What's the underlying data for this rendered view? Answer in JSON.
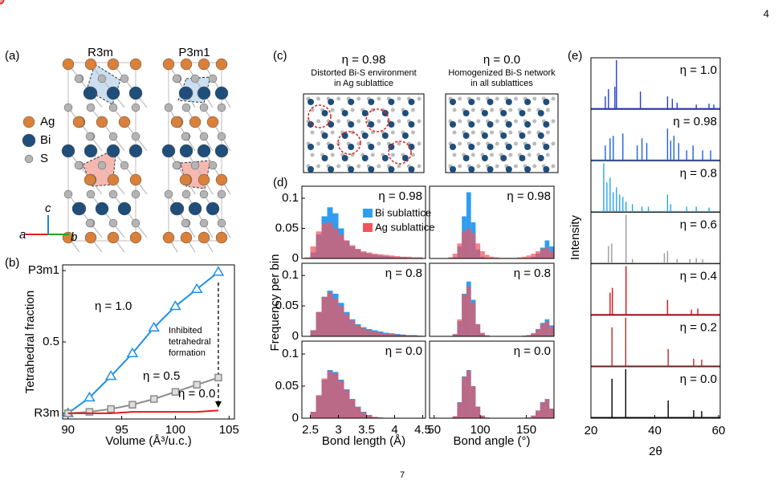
{
  "page": {
    "page_number": "4",
    "footer_number": "7"
  },
  "panel_a": {
    "label": "(a)",
    "structures": [
      "R3m",
      "P3m1"
    ],
    "legend": [
      "Ag",
      "Bi",
      "S"
    ],
    "axes": [
      "a",
      "b",
      "c"
    ]
  },
  "panel_c": {
    "label": "(c)",
    "images": [
      {
        "title": "η = 0.98",
        "caption": [
          "Distorted Bi-S environment",
          "in Ag sublattice"
        ]
      },
      {
        "title": "η = 0.0",
        "caption": [
          "Homogenized Bi-S network",
          "in all sublattices"
        ]
      }
    ]
  },
  "chart_data": [
    {
      "type": "line",
      "label": "(b)",
      "xlabel": "Volume (Å³/u.c.)",
      "ylabel": "Tetrahedral fraction",
      "annotation": [
        "Inhibited",
        "tetrahedral",
        "formation"
      ],
      "x": [
        90,
        92,
        94,
        96,
        98,
        100,
        102,
        104
      ],
      "series": [
        {
          "name": "η = 1.0",
          "color": "#1e90e8",
          "marker": "triangle",
          "values": [
            0,
            0.11,
            0.26,
            0.42,
            0.6,
            0.75,
            0.87,
            0.99
          ]
        },
        {
          "name": "η = 0.5",
          "color": "#8c8c8c",
          "marker": "square",
          "values": [
            0,
            0.01,
            0.03,
            0.06,
            0.1,
            0.15,
            0.2,
            0.25
          ]
        },
        {
          "name": "η = 0.0",
          "color": "#e8191e",
          "marker": "circle",
          "values": [
            0,
            0,
            0,
            0.01,
            0.01,
            0.01,
            0.01,
            0.02
          ]
        }
      ],
      "xlim": [
        89.5,
        105.5
      ],
      "ylim": [
        -0.04,
        1.04
      ],
      "xticks": [
        90,
        95,
        100,
        105
      ],
      "yticks": [
        {
          "value": 0,
          "label": "R3m"
        },
        0.5,
        {
          "value": 1,
          "label": "P3m1"
        }
      ]
    },
    {
      "type": "histogram",
      "label": "(d)",
      "ylabel": "Frequency per bin",
      "annotation": "η = 0.98",
      "bins": [
        2.4,
        2.5,
        2.6,
        2.7,
        2.8,
        2.9,
        3.0,
        3.1,
        3.2,
        3.3,
        3.4,
        3.5,
        3.6,
        3.7,
        3.8,
        3.9,
        4.0,
        4.1,
        4.2,
        4.3,
        4.4,
        4.5
      ],
      "series": [
        {
          "name": "Bi sublattice",
          "color": "#2f9ef0",
          "values": [
            0,
            0.01,
            0.04,
            0.07,
            0.085,
            0.075,
            0.05,
            0.03,
            0.02,
            0.015,
            0.01,
            0.008,
            0.006,
            0.005,
            0.004,
            0.003,
            0.002,
            0.002,
            0.001,
            0.001,
            0.001
          ]
        },
        {
          "name": "Ag sublattice",
          "color": "#f0555e",
          "values": [
            0.002,
            0.02,
            0.045,
            0.058,
            0.06,
            0.05,
            0.04,
            0.03,
            0.022,
            0.016,
            0.012,
            0.01,
            0.008,
            0.007,
            0.006,
            0.005,
            0.004,
            0.003,
            0.003,
            0.002,
            0.002
          ]
        }
      ],
      "xlim": [
        2.35,
        4.55
      ],
      "ylim": [
        0,
        0.12
      ],
      "yticks": [
        0,
        {
          "value": 0.05,
          "label": "0.05"
        },
        {
          "value": 0.1,
          "label": "0.1"
        }
      ]
    },
    {
      "type": "histogram",
      "annotation": "η = 0.98",
      "bins": [
        60,
        65,
        70,
        75,
        80,
        85,
        90,
        95,
        100,
        105,
        110,
        115,
        120,
        125,
        130,
        135,
        140,
        145,
        150,
        155,
        160,
        165,
        170,
        175,
        180
      ],
      "series": [
        {
          "color": "#2f9ef0",
          "values": [
            0,
            0,
            0.002,
            0.02,
            0.07,
            0.11,
            0.06,
            0.015,
            0.003,
            0.001,
            0,
            0,
            0,
            0,
            0,
            0,
            0,
            0,
            0.001,
            0.003,
            0.008,
            0.018,
            0.03,
            0.02
          ]
        },
        {
          "color": "#f0555e",
          "values": [
            0,
            0.002,
            0.008,
            0.025,
            0.045,
            0.05,
            0.042,
            0.025,
            0.012,
            0.006,
            0.003,
            0.002,
            0.001,
            0.001,
            0.001,
            0.001,
            0.002,
            0.003,
            0.005,
            0.008,
            0.012,
            0.016,
            0.018,
            0.012
          ]
        }
      ],
      "xlim": [
        45,
        180
      ],
      "ylim": [
        0,
        0.12
      ]
    },
    {
      "type": "histogram",
      "annotation": "η = 0.8",
      "bins": [
        2.4,
        2.5,
        2.6,
        2.7,
        2.8,
        2.9,
        3.0,
        3.1,
        3.2,
        3.3,
        3.4,
        3.5,
        3.6,
        3.7,
        3.8,
        3.9,
        4.0,
        4.1,
        4.2,
        4.3,
        4.4,
        4.5
      ],
      "series": [
        {
          "color": "#2f9ef0",
          "values": [
            0,
            0.01,
            0.04,
            0.065,
            0.075,
            0.07,
            0.055,
            0.04,
            0.028,
            0.02,
            0.015,
            0.012,
            0.01,
            0.008,
            0.006,
            0.005,
            0.004,
            0.003,
            0.002,
            0.002,
            0.001
          ]
        },
        {
          "color": "#f0555e",
          "values": [
            0,
            0.01,
            0.04,
            0.065,
            0.072,
            0.062,
            0.05,
            0.036,
            0.026,
            0.018,
            0.013,
            0.01,
            0.008,
            0.006,
            0.005,
            0.004,
            0.003,
            0.002,
            0.002,
            0.001,
            0.001
          ]
        }
      ],
      "xlim": [
        2.35,
        4.55
      ],
      "ylim": [
        0,
        0.12
      ],
      "yticks": [
        0,
        {
          "value": 0.05,
          "label": "0.05"
        },
        {
          "value": 0.1,
          "label": "0.1"
        }
      ]
    },
    {
      "type": "histogram",
      "annotation": "η = 0.8",
      "bins": [
        60,
        65,
        70,
        75,
        80,
        85,
        90,
        95,
        100,
        105,
        110,
        115,
        120,
        125,
        130,
        135,
        140,
        145,
        150,
        155,
        160,
        165,
        170,
        175,
        180
      ],
      "series": [
        {
          "color": "#2f9ef0",
          "values": [
            0,
            0,
            0.003,
            0.025,
            0.07,
            0.09,
            0.06,
            0.02,
            0.005,
            0.001,
            0,
            0,
            0,
            0,
            0,
            0,
            0,
            0.001,
            0.002,
            0.005,
            0.012,
            0.022,
            0.028,
            0.018
          ]
        },
        {
          "color": "#f0555e",
          "values": [
            0,
            0,
            0.004,
            0.028,
            0.068,
            0.082,
            0.055,
            0.02,
            0.006,
            0.002,
            0,
            0,
            0,
            0,
            0,
            0,
            0,
            0.001,
            0.002,
            0.005,
            0.011,
            0.02,
            0.025,
            0.016
          ]
        }
      ],
      "xlim": [
        45,
        180
      ],
      "ylim": [
        0,
        0.12
      ]
    },
    {
      "type": "histogram",
      "annotation": "η = 0.0",
      "xlabel": "Bond length (Å)",
      "bins": [
        2.4,
        2.5,
        2.6,
        2.7,
        2.8,
        2.9,
        3.0,
        3.1,
        3.2,
        3.3,
        3.4,
        3.5,
        3.6,
        3.7,
        3.8,
        3.9,
        4.0,
        4.1,
        4.2,
        4.3,
        4.4,
        4.5
      ],
      "series": [
        {
          "color": "#2f9ef0",
          "values": [
            0,
            0.01,
            0.035,
            0.06,
            0.075,
            0.072,
            0.06,
            0.045,
            0.03,
            0.018,
            0.01,
            0.005,
            0.002,
            0.001,
            0,
            0,
            0,
            0,
            0,
            0,
            0
          ]
        },
        {
          "color": "#f0555e",
          "values": [
            0,
            0.01,
            0.036,
            0.062,
            0.074,
            0.07,
            0.058,
            0.044,
            0.029,
            0.017,
            0.009,
            0.004,
            0.002,
            0.001,
            0,
            0,
            0,
            0,
            0,
            0,
            0
          ]
        }
      ],
      "xlim": [
        2.35,
        4.55
      ],
      "ylim": [
        0,
        0.12
      ],
      "xticks": [
        2.5,
        3,
        3.5,
        4,
        4.5
      ],
      "yticks": [
        0,
        {
          "value": 0.05,
          "label": "0.05"
        },
        {
          "value": 0.1,
          "label": "0.1"
        }
      ]
    },
    {
      "type": "histogram",
      "annotation": "η = 0.0",
      "xlabel": "Bond angle (°)",
      "bins": [
        60,
        65,
        70,
        75,
        80,
        85,
        90,
        95,
        100,
        105,
        110,
        115,
        120,
        125,
        130,
        135,
        140,
        145,
        150,
        155,
        160,
        165,
        170,
        175,
        180
      ],
      "series": [
        {
          "color": "#2f9ef0",
          "values": [
            0,
            0,
            0.003,
            0.025,
            0.065,
            0.075,
            0.05,
            0.018,
            0.004,
            0.001,
            0,
            0,
            0,
            0,
            0,
            0,
            0,
            0,
            0.001,
            0.004,
            0.012,
            0.025,
            0.03,
            0.015
          ]
        },
        {
          "color": "#f0555e",
          "values": [
            0,
            0,
            0.003,
            0.024,
            0.064,
            0.074,
            0.05,
            0.018,
            0.004,
            0.001,
            0,
            0,
            0,
            0,
            0,
            0,
            0,
            0,
            0.001,
            0.004,
            0.012,
            0.024,
            0.029,
            0.015
          ]
        }
      ],
      "xlim": [
        45,
        180
      ],
      "ylim": [
        0,
        0.12
      ],
      "xticks": [
        50,
        100,
        150
      ]
    },
    {
      "type": "stick",
      "label": "(e)",
      "xlabel": "2θ",
      "ylabel": "Intensity",
      "xlim": [
        20,
        60.5
      ],
      "ylim": [
        0,
        1
      ],
      "xticks": [
        20,
        40,
        60
      ],
      "series": [
        {
          "name": "η = 1.0",
          "color": "#1f3fd0",
          "x": [
            24.5,
            25.5,
            27.5,
            28.0,
            35.5,
            44.0,
            45.5,
            47.0,
            53,
            57,
            58.5
          ],
          "values": [
            0.25,
            0.4,
            0.45,
            1.0,
            0.35,
            0.25,
            0.2,
            0.12,
            0.08,
            0.1,
            0.08
          ]
        },
        {
          "name": "η = 0.98",
          "color": "#2060e0",
          "x": [
            24.5,
            26,
            27,
            30,
            34.5,
            36,
            37.5,
            44,
            45,
            46,
            47.5,
            50,
            52,
            55,
            57.5
          ],
          "values": [
            0.3,
            0.45,
            0.5,
            0.55,
            0.3,
            0.45,
            0.35,
            0.65,
            0.4,
            0.5,
            0.35,
            0.2,
            0.3,
            0.2,
            0.2
          ]
        },
        {
          "name": "η = 0.8",
          "color": "#29a3f0",
          "x": [
            24,
            25,
            26,
            27,
            28,
            29,
            30,
            31,
            33,
            36,
            38,
            44,
            45,
            50,
            53,
            57
          ],
          "values": [
            1.0,
            0.6,
            0.7,
            0.4,
            0.5,
            0.35,
            0.3,
            0.2,
            0.15,
            0.1,
            0.1,
            0.35,
            0.15,
            0.1,
            0.1,
            0.08
          ]
        },
        {
          "name": "η = 0.6",
          "color": "#999999",
          "x": [
            25.5,
            26.5,
            31,
            33,
            43,
            44,
            47,
            51,
            53,
            55
          ],
          "values": [
            0.35,
            0.4,
            1.0,
            0.08,
            0.2,
            0.25,
            0.08,
            0.08,
            0.1,
            0.08
          ]
        },
        {
          "name": "η = 0.4",
          "color": "#e01010",
          "x": [
            26,
            26.7,
            31,
            44,
            51.5,
            53.5
          ],
          "values": [
            0.45,
            0.55,
            1.0,
            0.3,
            0.1,
            0.12
          ]
        },
        {
          "name": "η = 0.2",
          "color": "#b03030",
          "x": [
            26.6,
            30.9,
            44.2,
            52.2,
            54.7
          ],
          "values": [
            0.8,
            1.0,
            0.35,
            0.15,
            0.13
          ]
        },
        {
          "name": "η = 0.0",
          "color": "#000000",
          "x": [
            26.6,
            30.9,
            44.2,
            52.2,
            54.7
          ],
          "values": [
            0.8,
            1.0,
            0.35,
            0.15,
            0.13
          ]
        }
      ]
    }
  ]
}
